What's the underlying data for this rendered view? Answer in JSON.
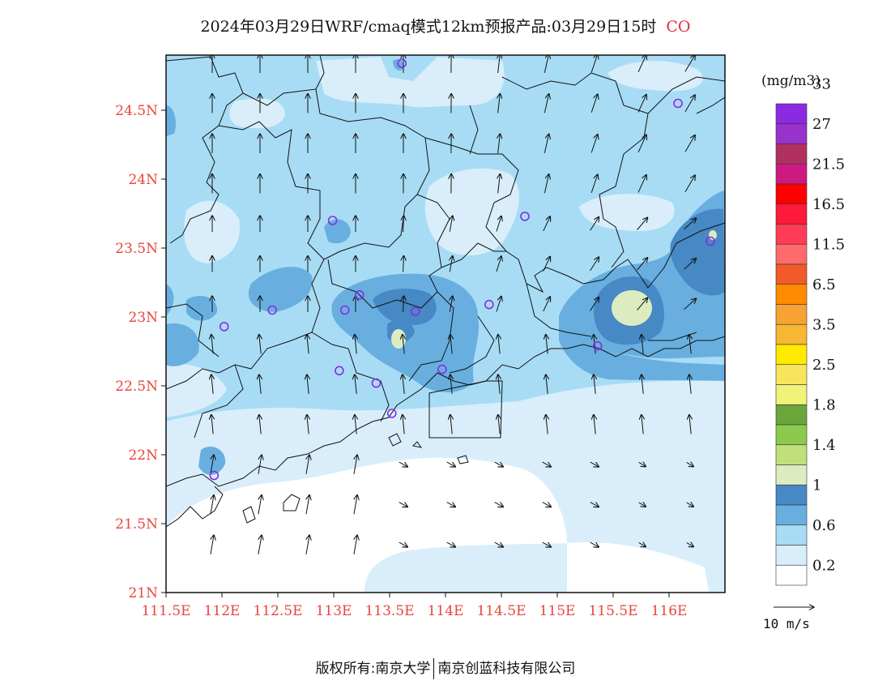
{
  "title": {
    "text": "2024年03月29日WRF/cmaq模式12km预报产品:03月29日15时",
    "pollutant": "CO"
  },
  "map": {
    "lat_ticks": [
      "21N",
      "21.5N",
      "22N",
      "22.5N",
      "23N",
      "23.5N",
      "24N",
      "24.5N"
    ],
    "lon_ticks": [
      "111.5E",
      "112E",
      "112.5E",
      "113E",
      "113.5E",
      "114E",
      "114.5E",
      "115E",
      "115.5E",
      "116E"
    ],
    "lon_range": [
      111.5,
      116.5
    ],
    "lat_range": [
      21,
      24.9
    ],
    "stations": [
      {
        "lon": 113.61,
        "lat": 24.84
      },
      {
        "lon": 116.08,
        "lat": 24.55
      },
      {
        "lon": 112.99,
        "lat": 23.7
      },
      {
        "lon": 114.71,
        "lat": 23.73
      },
      {
        "lon": 116.37,
        "lat": 23.55
      },
      {
        "lon": 113.23,
        "lat": 23.16
      },
      {
        "lon": 112.45,
        "lat": 23.05
      },
      {
        "lon": 113.1,
        "lat": 23.05
      },
      {
        "lon": 113.73,
        "lat": 23.04
      },
      {
        "lon": 114.39,
        "lat": 23.09
      },
      {
        "lon": 112.02,
        "lat": 22.93
      },
      {
        "lon": 115.36,
        "lat": 22.79
      },
      {
        "lon": 113.05,
        "lat": 22.61
      },
      {
        "lon": 113.38,
        "lat": 22.52
      },
      {
        "lon": 113.97,
        "lat": 22.62
      },
      {
        "lon": 113.52,
        "lat": 22.3
      },
      {
        "lon": 111.93,
        "lat": 21.85
      }
    ]
  },
  "colorbar": {
    "unit": "(mg/m3)",
    "labels": [
      "0.2",
      "0.6",
      "1",
      "1.4",
      "1.8",
      "2.5",
      "3.5",
      "6.5",
      "11.5",
      "16.5",
      "21.5",
      "27",
      "33"
    ],
    "colors": [
      "#ffffff",
      "#d9eefa",
      "#a8dcf5",
      "#68afe0",
      "#4689c4",
      "#dcecc0",
      "#bfe07a",
      "#8cc94e",
      "#6aa63a",
      "#f2f27a",
      "#f7e65c",
      "#ffea00",
      "#f7b733",
      "#f7a233",
      "#ff8c00",
      "#f25a2a",
      "#ff6b6b",
      "#ff3b55",
      "#ff1a3c",
      "#ff0000",
      "#cc1a80",
      "#b03060",
      "#9932cc",
      "#8a2be2"
    ]
  },
  "wind_reference": {
    "label": "10 m/s"
  },
  "footer": {
    "left": "版权所有:南京大学",
    "right": "南京创蓝科技有限公司"
  }
}
